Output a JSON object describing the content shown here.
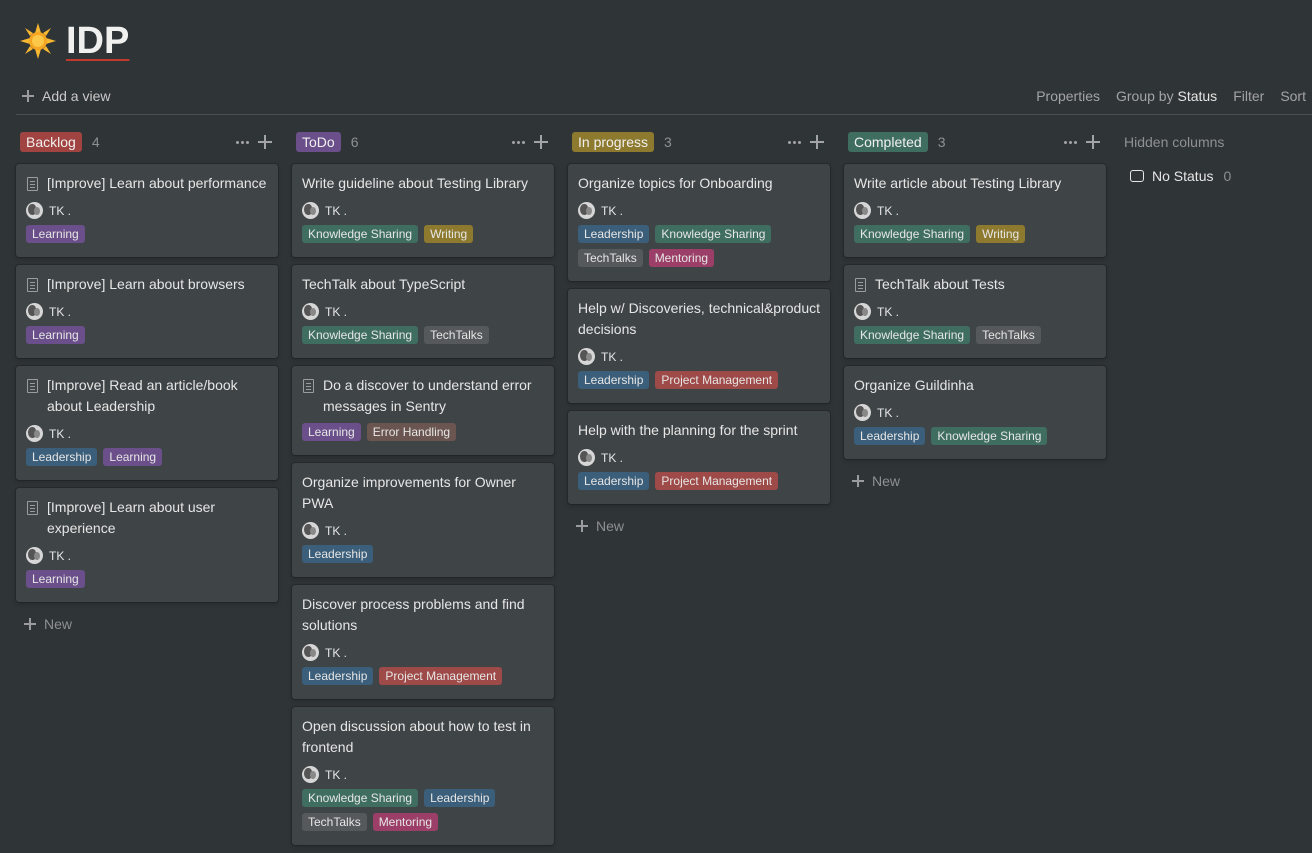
{
  "page": {
    "title": "IDP",
    "icon": "sun-emoji"
  },
  "viewbar": {
    "add_view": "Add a view",
    "properties": "Properties",
    "group_by_prefix": "Group by",
    "group_by_value": "Status",
    "filter": "Filter",
    "sort": "Sort"
  },
  "tag_colors": {
    "Learning": "#6a4f8a",
    "Leadership": "#3b5e7a",
    "Knowledge Sharing": "#3f6e60",
    "Writing": "#8e7a2f",
    "TechTalks": "#55595c",
    "Error Handling": "#6a5550",
    "Project Management": "#9e4a48",
    "Mentoring": "#9b3f68"
  },
  "columns": [
    {
      "name": "Backlog",
      "count": "4",
      "color": "#a14441",
      "cards": [
        {
          "title": "[Improve] Learn about performance",
          "doc": true,
          "person": "TK .",
          "tags": [
            "Learning"
          ]
        },
        {
          "title": "[Improve] Learn about browsers",
          "doc": true,
          "person": "TK .",
          "tags": [
            "Learning"
          ]
        },
        {
          "title": "[Improve] Read an article/book about Leadership",
          "doc": true,
          "person": "TK .",
          "tags": [
            "Leadership",
            "Learning"
          ]
        },
        {
          "title": "[Improve] Learn about user experience",
          "doc": true,
          "person": "TK .",
          "tags": [
            "Learning"
          ]
        }
      ],
      "new_label": "New"
    },
    {
      "name": "ToDo",
      "count": "6",
      "color": "#6a4f8a",
      "cards": [
        {
          "title": "Write guideline about Testing Library",
          "doc": false,
          "person": "TK .",
          "tags": [
            "Knowledge Sharing",
            "Writing"
          ]
        },
        {
          "title": "TechTalk about TypeScript",
          "doc": false,
          "person": "TK .",
          "tags": [
            "Knowledge Sharing",
            "TechTalks"
          ]
        },
        {
          "title": "Do a discover to understand error messages in Sentry",
          "doc": true,
          "person": "",
          "tags": [
            "Learning",
            "Error Handling"
          ]
        },
        {
          "title": "Organize improvements for Owner PWA",
          "doc": false,
          "person": "TK .",
          "tags": [
            "Leadership"
          ]
        },
        {
          "title": "Discover process problems and find solutions",
          "doc": false,
          "person": "TK .",
          "tags": [
            "Leadership",
            "Project Management"
          ]
        },
        {
          "title": "Open discussion about how to test in frontend",
          "doc": false,
          "person": "TK .",
          "tags": [
            "Knowledge Sharing",
            "Leadership",
            "TechTalks",
            "Mentoring"
          ]
        }
      ],
      "new_label": ""
    },
    {
      "name": "In progress",
      "count": "3",
      "color": "#8e7a2f",
      "cards": [
        {
          "title": "Organize topics for Onboarding",
          "doc": false,
          "person": "TK .",
          "tags": [
            "Leadership",
            "Knowledge Sharing",
            "TechTalks",
            "Mentoring"
          ]
        },
        {
          "title": "Help w/ Discoveries, technical&product decisions",
          "doc": false,
          "person": "TK .",
          "tags": [
            "Leadership",
            "Project Management"
          ]
        },
        {
          "title": "Help with the planning for the sprint",
          "doc": false,
          "person": "TK .",
          "tags": [
            "Leadership",
            "Project Management"
          ]
        }
      ],
      "new_label": "New"
    },
    {
      "name": "Completed",
      "count": "3",
      "color": "#3f6e60",
      "cards": [
        {
          "title": "Write article about Testing Library",
          "doc": false,
          "person": "TK .",
          "tags": [
            "Knowledge Sharing",
            "Writing"
          ]
        },
        {
          "title": "TechTalk about Tests",
          "doc": true,
          "person": "TK .",
          "tags": [
            "Knowledge Sharing",
            "TechTalks"
          ]
        },
        {
          "title": "Organize Guildinha",
          "doc": false,
          "person": "TK .",
          "tags": [
            "Leadership",
            "Knowledge Sharing"
          ]
        }
      ],
      "new_label": "New"
    }
  ],
  "hidden": {
    "heading": "Hidden columns",
    "items": [
      {
        "label": "No Status",
        "count": "0"
      }
    ]
  }
}
